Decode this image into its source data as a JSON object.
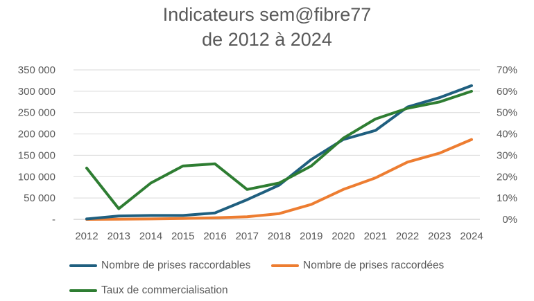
{
  "chart_data": {
    "type": "line",
    "title_line1": "Indicateurs sem@fibre77",
    "title_line2": "de 2012 à 2024",
    "categories": [
      "2012",
      "2013",
      "2014",
      "2015",
      "2016",
      "2017",
      "2018",
      "2019",
      "2020",
      "2021",
      "2022",
      "2023",
      "2024"
    ],
    "y_left": {
      "range": [
        0,
        350000
      ],
      "ticks": [
        0,
        50000,
        100000,
        150000,
        200000,
        250000,
        300000,
        350000
      ],
      "tick_labels": [
        "-",
        "50 000",
        "100 000",
        "150 000",
        "200 000",
        "250 000",
        "300 000",
        "350 000"
      ]
    },
    "y_right": {
      "range": [
        0,
        70
      ],
      "ticks": [
        0,
        10,
        20,
        30,
        40,
        50,
        60,
        70
      ],
      "tick_labels": [
        "0%",
        "10%",
        "20%",
        "30%",
        "40%",
        "50%",
        "60%",
        "70%"
      ]
    },
    "series": [
      {
        "name": "Nombre de prises raccordables",
        "axis": "left",
        "color": "#1f5f7f",
        "values": [
          1000,
          8000,
          9000,
          9000,
          15000,
          46000,
          80000,
          140000,
          187000,
          208000,
          263000,
          285000,
          313000
        ]
      },
      {
        "name": "Nombre de prises raccordées",
        "axis": "left",
        "color": "#ed7d31",
        "values": [
          0,
          500,
          1000,
          2000,
          3500,
          6000,
          13500,
          35000,
          70000,
          97000,
          134000,
          155000,
          187000
        ]
      },
      {
        "name": "Taux de commercialisation",
        "axis": "right",
        "color": "#2e7d32",
        "values": [
          24,
          5,
          17,
          25,
          26,
          14,
          17,
          25,
          38,
          47,
          52,
          55,
          60
        ]
      }
    ],
    "grid": true,
    "legend_position": "bottom"
  }
}
